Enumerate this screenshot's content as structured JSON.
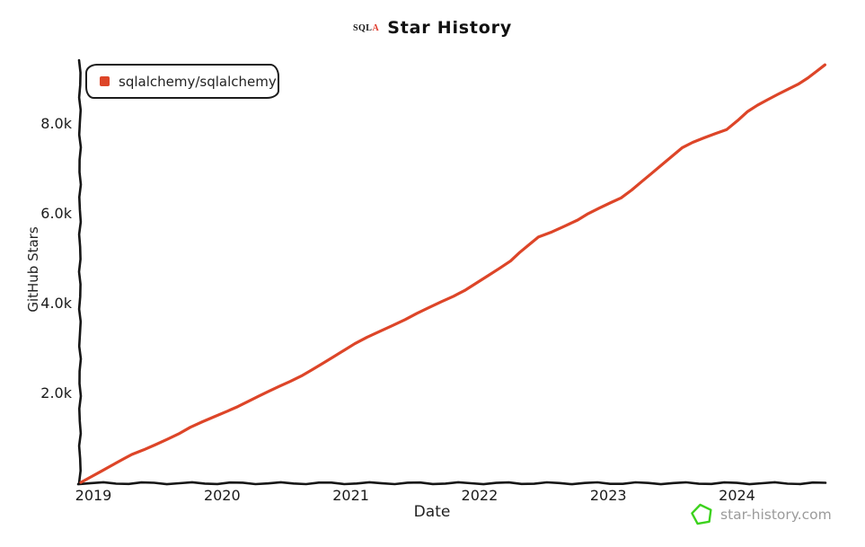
{
  "title": {
    "logo_main": "SQL",
    "logo_accent": "A",
    "text": "Star History"
  },
  "legend": {
    "items": [
      {
        "label": "sqlalchemy/sqlalchemy",
        "color": "#dd4528"
      }
    ]
  },
  "watermark": {
    "text": "star-history.com",
    "star_color": "#3cd21d",
    "text_color": "#9b9b9b"
  },
  "colors": {
    "axis": "#161616",
    "line": "#dd4528",
    "background": "#ffffff"
  },
  "chart_data": {
    "type": "line",
    "title": "Star History",
    "xlabel": "Date",
    "ylabel": "GitHub Stars",
    "legend_position": "top-left",
    "grid": false,
    "xlim": [
      2018.9,
      2024.75
    ],
    "ylim": [
      0,
      9500
    ],
    "x_ticks": [
      {
        "label": "2019",
        "year": 2019
      },
      {
        "label": "2020",
        "year": 2020
      },
      {
        "label": "2021",
        "year": 2021
      },
      {
        "label": "2022",
        "year": 2022
      },
      {
        "label": "2023",
        "year": 2023
      },
      {
        "label": "2024",
        "year": 2024
      }
    ],
    "y_ticks": [
      {
        "label": "2.0k",
        "value": 2000
      },
      {
        "label": "4.0k",
        "value": 4000
      },
      {
        "label": "6.0k",
        "value": 6000
      },
      {
        "label": "8.0k",
        "value": 8000
      }
    ],
    "series": [
      {
        "name": "sqlalchemy/sqlalchemy",
        "color": "#dd4528",
        "points": [
          [
            2018.9,
            20
          ],
          [
            2019.3,
            620
          ],
          [
            2019.66,
            1100
          ],
          [
            2020.04,
            1600
          ],
          [
            2020.53,
            2250
          ],
          [
            2021.03,
            3100
          ],
          [
            2021.42,
            3650
          ],
          [
            2021.8,
            4150
          ],
          [
            2022.24,
            4950
          ],
          [
            2022.46,
            5470
          ],
          [
            2022.76,
            5870
          ],
          [
            2023.1,
            6350
          ],
          [
            2023.57,
            7480
          ],
          [
            2023.92,
            7880
          ],
          [
            2024.08,
            8290
          ],
          [
            2024.48,
            8890
          ],
          [
            2024.68,
            9330
          ]
        ]
      }
    ]
  }
}
